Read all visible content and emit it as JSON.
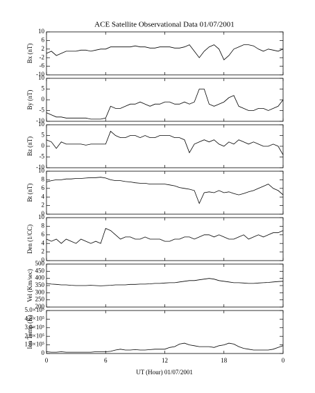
{
  "chart_data": [
    {
      "type": "line",
      "title": "ACE Satellite Observational Data   01/07/2001",
      "ylabel": "Bx (nT)",
      "ylim": [
        -10,
        10
      ],
      "yticks": [
        10,
        6,
        2,
        -2,
        -6,
        -10
      ],
      "x": [
        0,
        0.5,
        1,
        1.5,
        2,
        2.5,
        3,
        3.5,
        4,
        4.5,
        5,
        5.5,
        6,
        6.5,
        7,
        7.5,
        8,
        8.5,
        9,
        9.5,
        10,
        10.5,
        11,
        11.5,
        12,
        12.5,
        13,
        13.5,
        14,
        14.5,
        15,
        15.5,
        16,
        16.5,
        17,
        17.5,
        18,
        18.5,
        19,
        19.5,
        20,
        20.5,
        21,
        21.5,
        22,
        22.5,
        23,
        23.5,
        24
      ],
      "values": [
        0,
        1,
        -1,
        0,
        1,
        1,
        1,
        1.5,
        1.5,
        1,
        1.5,
        2,
        2,
        3,
        3,
        3,
        3,
        3,
        3.5,
        3,
        3,
        2.5,
        2.5,
        3,
        3,
        3,
        2.5,
        2.5,
        3,
        4,
        1,
        -2,
        1,
        3,
        4,
        2,
        -3,
        -1,
        2,
        3,
        4,
        4,
        3.5,
        2,
        1,
        2,
        1.5,
        1,
        2
      ]
    },
    {
      "type": "line",
      "ylabel": "By (nT)",
      "ylim": [
        -10,
        10
      ],
      "yticks": [
        10,
        5,
        0,
        -5,
        -10
      ],
      "x": [
        0,
        0.5,
        1,
        1.5,
        2,
        2.5,
        3,
        3.5,
        4,
        4.5,
        5,
        5.5,
        6,
        6.5,
        7,
        7.5,
        8,
        8.5,
        9,
        9.5,
        10,
        10.5,
        11,
        11.5,
        12,
        12.5,
        13,
        13.5,
        14,
        14.5,
        15,
        15.5,
        16,
        16.5,
        17,
        17.5,
        18,
        18.5,
        19,
        19.5,
        20,
        20.5,
        21,
        21.5,
        22,
        22.5,
        23,
        23.5,
        24
      ],
      "values": [
        -6,
        -7,
        -8,
        -8,
        -8.5,
        -8.5,
        -8.5,
        -8.5,
        -8.5,
        -9,
        -9,
        -9,
        -8.5,
        -3,
        -4,
        -4,
        -3,
        -2,
        -2,
        -1,
        -2,
        -3,
        -2,
        -2,
        -1,
        -1,
        -2,
        -2,
        -1,
        -2,
        -1,
        5,
        5,
        -2,
        -3,
        -2,
        -1,
        1,
        2,
        -3,
        -4,
        -5,
        -5,
        -4,
        -4,
        -5,
        -4,
        -3,
        0
      ]
    },
    {
      "type": "line",
      "ylabel": "Bz (nT)",
      "ylim": [
        -10,
        10
      ],
      "yticks": [
        10,
        5,
        0,
        -5,
        -10
      ],
      "x": [
        0,
        0.5,
        1,
        1.5,
        2,
        2.5,
        3,
        3.5,
        4,
        4.5,
        5,
        5.5,
        6,
        6.5,
        7,
        7.5,
        8,
        8.5,
        9,
        9.5,
        10,
        10.5,
        11,
        11.5,
        12,
        12.5,
        13,
        13.5,
        14,
        14.5,
        15,
        15.5,
        16,
        16.5,
        17,
        17.5,
        18,
        18.5,
        19,
        19.5,
        20,
        20.5,
        21,
        21.5,
        22,
        22.5,
        23,
        23.5,
        24
      ],
      "values": [
        3,
        2,
        -1,
        2,
        1,
        1,
        1,
        1,
        0.5,
        1,
        1,
        1,
        1,
        7,
        5,
        4,
        4,
        5,
        5,
        4,
        5,
        4,
        4,
        5,
        5,
        5,
        4,
        4,
        3,
        -3,
        1,
        2,
        3,
        2,
        3,
        1,
        0,
        2,
        1,
        3,
        2,
        1,
        2,
        1,
        0,
        0,
        1,
        0,
        -4
      ]
    },
    {
      "type": "line",
      "ylabel": "Bt (nT)",
      "ylim": [
        0,
        10
      ],
      "yticks": [
        10,
        8,
        6,
        4,
        2,
        0
      ],
      "x": [
        0,
        0.5,
        1,
        1.5,
        2,
        2.5,
        3,
        3.5,
        4,
        4.5,
        5,
        5.5,
        6,
        6.5,
        7,
        7.5,
        8,
        8.5,
        9,
        9.5,
        10,
        10.5,
        11,
        11.5,
        12,
        12.5,
        13,
        13.5,
        14,
        14.5,
        15,
        15.5,
        16,
        16.5,
        17,
        17.5,
        18,
        18.5,
        19,
        19.5,
        20,
        20.5,
        21,
        21.5,
        22,
        22.5,
        23,
        23.5,
        24
      ],
      "values": [
        7.5,
        7.8,
        8,
        8,
        8.2,
        8.2,
        8.3,
        8.3,
        8.4,
        8.5,
        8.5,
        8.6,
        8.4,
        8,
        7.8,
        7.8,
        7.6,
        7.5,
        7.3,
        7.2,
        7.2,
        7,
        7,
        7,
        7,
        6.8,
        6.6,
        6.2,
        6,
        5.8,
        5.5,
        2.5,
        5,
        5.2,
        5,
        5.5,
        5,
        5.2,
        4.8,
        4.5,
        4.8,
        5.2,
        5.5,
        6,
        6.5,
        7,
        6,
        5.5,
        4.5
      ]
    },
    {
      "type": "line",
      "ylabel": "Den (1/CC)",
      "ylim": [
        0,
        10
      ],
      "yticks": [
        10,
        8,
        6,
        4,
        2,
        0
      ],
      "x": [
        0,
        0.5,
        1,
        1.5,
        2,
        2.5,
        3,
        3.5,
        4,
        4.5,
        5,
        5.5,
        6,
        6.5,
        7,
        7.5,
        8,
        8.5,
        9,
        9.5,
        10,
        10.5,
        11,
        11.5,
        12,
        12.5,
        13,
        13.5,
        14,
        14.5,
        15,
        15.5,
        16,
        16.5,
        17,
        17.5,
        18,
        18.5,
        19,
        19.5,
        20,
        20.5,
        21,
        21.5,
        22,
        22.5,
        23,
        23.5,
        24
      ],
      "values": [
        5,
        4.5,
        5,
        4,
        5,
        4.5,
        4,
        5,
        4.5,
        4,
        4.5,
        4,
        7.5,
        7,
        6,
        5,
        5.5,
        5.5,
        5,
        5,
        5.5,
        5,
        5,
        5,
        4.5,
        4.5,
        5,
        5,
        5.5,
        5.5,
        5,
        5.5,
        6,
        6,
        5.5,
        6,
        5.5,
        5,
        5,
        5.5,
        6,
        5,
        5.5,
        6,
        5.5,
        6,
        6.5,
        6.5,
        7
      ]
    },
    {
      "type": "line",
      "ylabel": "Vel (Km/sec)",
      "ylim": [
        200,
        500
      ],
      "yticks": [
        500,
        450,
        400,
        350,
        300,
        250,
        200
      ],
      "x": [
        0,
        0.5,
        1,
        1.5,
        2,
        2.5,
        3,
        3.5,
        4,
        4.5,
        5,
        5.5,
        6,
        6.5,
        7,
        7.5,
        8,
        8.5,
        9,
        9.5,
        10,
        10.5,
        11,
        11.5,
        12,
        12.5,
        13,
        13.5,
        14,
        14.5,
        15,
        15.5,
        16,
        16.5,
        17,
        17.5,
        18,
        18.5,
        19,
        19.5,
        20,
        20.5,
        21,
        21.5,
        22,
        22.5,
        23,
        23.5,
        24
      ],
      "values": [
        365,
        360,
        358,
        355,
        355,
        352,
        350,
        350,
        350,
        352,
        350,
        348,
        350,
        352,
        355,
        355,
        355,
        358,
        358,
        360,
        360,
        362,
        365,
        365,
        368,
        370,
        370,
        375,
        380,
        385,
        385,
        390,
        395,
        400,
        395,
        385,
        380,
        375,
        370,
        370,
        368,
        365,
        365,
        368,
        370,
        372,
        375,
        378,
        380
      ]
    },
    {
      "type": "line",
      "ylabel": "Ion Temp (K)",
      "ylim": [
        0,
        500000
      ],
      "yticks": [
        {
          "value": 500000,
          "label": "5.0×10⁵"
        },
        {
          "value": 400000,
          "label": "4.0×10⁵"
        },
        {
          "value": 300000,
          "label": "3.0×10⁵"
        },
        {
          "value": 200000,
          "label": "2.0×10⁵"
        },
        {
          "value": 100000,
          "label": "1.0×10⁵"
        },
        0
      ],
      "x": [
        0,
        0.5,
        1,
        1.5,
        2,
        2.5,
        3,
        3.5,
        4,
        4.5,
        5,
        5.5,
        6,
        6.5,
        7,
        7.5,
        8,
        8.5,
        9,
        9.5,
        10,
        10.5,
        11,
        11.5,
        12,
        12.5,
        13,
        13.5,
        14,
        14.5,
        15,
        15.5,
        16,
        16.5,
        17,
        17.5,
        18,
        18.5,
        19,
        19.5,
        20,
        20.5,
        21,
        21.5,
        22,
        22.5,
        23,
        23.5,
        24
      ],
      "values": [
        20000,
        15000,
        15000,
        20000,
        15000,
        15000,
        15000,
        15000,
        15000,
        15000,
        20000,
        20000,
        20000,
        25000,
        40000,
        50000,
        40000,
        40000,
        45000,
        40000,
        40000,
        45000,
        50000,
        50000,
        50000,
        70000,
        80000,
        110000,
        120000,
        100000,
        90000,
        80000,
        80000,
        80000,
        70000,
        90000,
        100000,
        120000,
        110000,
        80000,
        60000,
        50000,
        40000,
        40000,
        40000,
        40000,
        50000,
        70000,
        90000
      ],
      "xlabel": "UT (Hour)  01/07/2001",
      "xlim": [
        0,
        24
      ],
      "xticks": [
        0,
        6,
        12,
        18,
        {
          "value": 24,
          "label": "0"
        }
      ]
    }
  ]
}
